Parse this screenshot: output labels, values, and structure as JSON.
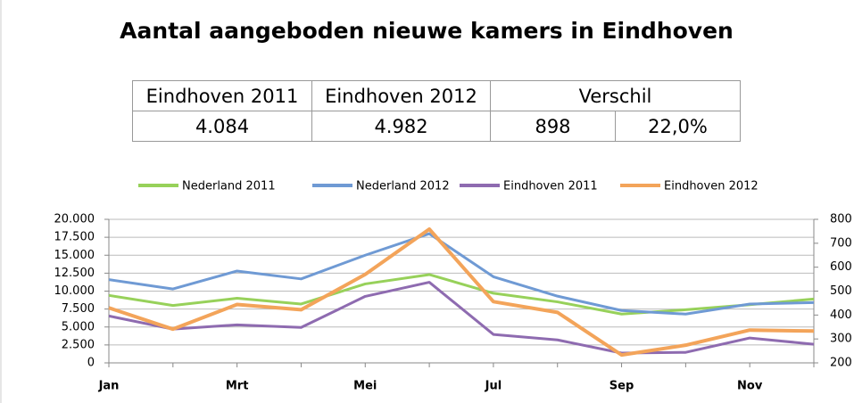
{
  "table": {
    "header": [
      "Eindhoven 2011",
      "Eindhoven 2012",
      "Verschil"
    ],
    "rows": [
      [
        "4.084",
        "4.982",
        "898",
        "22,0%"
      ]
    ]
  },
  "chart_data": {
    "type": "line",
    "title": "Aantal aangeboden nieuwe kamers in Eindhoven",
    "categories": [
      "Jan",
      null,
      "Mrt",
      null,
      "Mei",
      null,
      "Jul",
      null,
      "Sep",
      null,
      "Nov",
      null
    ],
    "series": [
      {
        "name": "Nederland 2011",
        "color": "#97d15a",
        "values": [
          9400,
          8000,
          9000,
          8200,
          11000,
          12300,
          9700,
          8500,
          6800,
          7400,
          8100,
          8900
        ]
      },
      {
        "name": "Nederland 2012",
        "color": "#6f9ad4",
        "values": [
          11600,
          10300,
          12800,
          11700,
          15000,
          18000,
          12000,
          9300,
          7300,
          6800,
          8200,
          8400
        ]
      },
      {
        "name": "Eindhoven 2011",
        "color": "#8e6bb0",
        "axis": "y2",
        "values": [
          396,
          341,
          359,
          348,
          478,
          537,
          319,
          296,
          241,
          244,
          304,
          278
        ]
      },
      {
        "name": "Eindhoven 2012",
        "color": "#f3a45a",
        "axis": "y2",
        "values": [
          430,
          341,
          444,
          422,
          570,
          759,
          456,
          411,
          233,
          274,
          337,
          333
        ]
      }
    ],
    "ylim": [
      0,
      20000
    ],
    "yticks": [
      0,
      {
        "value": 2500,
        "label": "2.500"
      },
      {
        "value": 5000,
        "label": "5.000"
      },
      {
        "value": 7500,
        "label": "7.500"
      },
      {
        "value": 10000,
        "label": "10.000"
      },
      {
        "value": 12500,
        "label": "12.500"
      },
      {
        "value": 15000,
        "label": "15.000"
      },
      {
        "value": 17500,
        "label": "17.500"
      },
      {
        "value": 20000,
        "label": "20.000"
      }
    ],
    "y2lim": [
      200,
      800
    ],
    "y2ticks": [
      200,
      300,
      400,
      500,
      600,
      700,
      800
    ],
    "grid": true,
    "legend": "top"
  }
}
